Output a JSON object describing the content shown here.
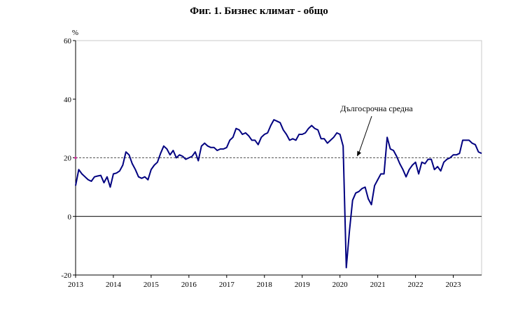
{
  "chart_data": {
    "type": "line",
    "title": "Фиг. 1. Бизнес климат - общо",
    "ylabel": "%",
    "xlabel": "",
    "ylim": [
      -20,
      60
    ],
    "yticks": [
      -20,
      0,
      20,
      40,
      60
    ],
    "x_start": "2013-01",
    "frequency": "monthly",
    "x_tick_labels": [
      "2013",
      "2014",
      "2015",
      "2016",
      "2017",
      "2018",
      "2019",
      "2020",
      "2021",
      "2022",
      "2023"
    ],
    "grid": false,
    "reference_line": {
      "label": "Дългосрочна средна",
      "value": 20,
      "style": "dashed"
    },
    "colors": {
      "series": "#000080",
      "reference_line": "#555555",
      "zero_line": "#000000"
    },
    "series": [
      {
        "name": "",
        "values": [
          10.5,
          16.0,
          14.5,
          13.5,
          12.5,
          12.0,
          13.5,
          13.8,
          14.0,
          11.5,
          13.5,
          10.0,
          14.5,
          14.8,
          15.5,
          17.5,
          22.0,
          21.0,
          18.0,
          16.0,
          13.5,
          13.0,
          13.5,
          12.5,
          16.0,
          17.5,
          18.5,
          21.5,
          24.0,
          23.0,
          21.0,
          22.5,
          20.0,
          21.0,
          20.5,
          19.5,
          20.0,
          20.5,
          22.0,
          19.0,
          24.0,
          25.0,
          24.0,
          23.5,
          23.5,
          22.5,
          23.0,
          23.0,
          23.5,
          26.0,
          27.0,
          30.0,
          29.5,
          28.0,
          28.5,
          27.5,
          26.0,
          26.0,
          24.5,
          27.0,
          28.0,
          28.5,
          31.0,
          33.0,
          32.5,
          32.0,
          29.5,
          28.0,
          26.0,
          26.5,
          26.0,
          28.0,
          28.0,
          28.5,
          30.0,
          31.0,
          30.0,
          29.5,
          26.5,
          26.5,
          25.0,
          26.0,
          27.0,
          28.5,
          28.0,
          24.0,
          -17.5,
          -5.0,
          5.5,
          8.0,
          8.5,
          9.5,
          10.0,
          6.0,
          4.0,
          10.5,
          12.5,
          14.5,
          14.5,
          27.0,
          23.0,
          22.5,
          20.5,
          18.0,
          16.0,
          13.5,
          16.0,
          17.5,
          18.5,
          14.5,
          18.5,
          18.0,
          19.5,
          19.5,
          16.0,
          17.0,
          15.5,
          18.5,
          19.5,
          20.0,
          21.0,
          21.0,
          21.5,
          26.0,
          26.0,
          26.0,
          25.0,
          24.5,
          22.0,
          21.5
        ]
      }
    ]
  }
}
